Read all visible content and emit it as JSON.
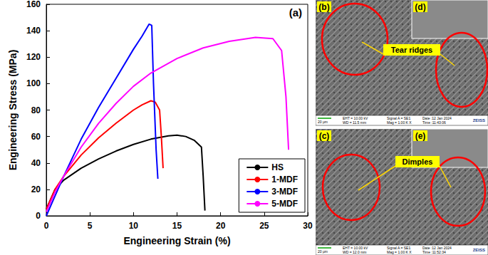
{
  "chart_data": {
    "type": "line",
    "panel_label": "(a)",
    "x_label": "Engineering Strain (%)",
    "y_label": "Engineering Stress (MPa)",
    "xlim": [
      0,
      30
    ],
    "xticks": [
      0,
      5,
      10,
      15,
      20,
      25,
      30
    ],
    "ylim": [
      0,
      160
    ],
    "yticks": [
      0,
      20,
      40,
      60,
      80,
      100,
      120,
      140,
      160
    ],
    "grid": false,
    "legend": "lower right",
    "series": [
      {
        "name": "HS",
        "color": "#000000",
        "x": [
          0,
          1,
          2,
          4,
          6,
          8,
          10,
          12,
          14,
          15,
          16,
          17,
          17.8,
          18,
          18.2
        ],
        "values": [
          5,
          20,
          27,
          36,
          43,
          49,
          54,
          58,
          60.5,
          61,
          60,
          57,
          52,
          30,
          4
        ]
      },
      {
        "name": "1-MDF",
        "color": "#ff0000",
        "x": [
          0,
          1,
          2,
          4,
          6,
          8,
          10,
          11,
          12,
          12.5,
          13,
          13.2,
          13.4
        ],
        "values": [
          5,
          20,
          30,
          46,
          59,
          70,
          80,
          84,
          87,
          86,
          80,
          60,
          36
        ]
      },
      {
        "name": "3-MDF",
        "color": "#0000ff",
        "x": [
          0,
          1,
          2,
          4,
          6,
          8,
          10,
          11,
          11.8,
          12.1,
          12.3,
          12.6,
          12.8
        ],
        "values": [
          0,
          15,
          30,
          58,
          82,
          104,
          126,
          136,
          145,
          144,
          100,
          50,
          28
        ]
      },
      {
        "name": "5-MDF",
        "color": "#ff00ff",
        "x": [
          0,
          1,
          2,
          4,
          6,
          8,
          10,
          12,
          15,
          18,
          21,
          24,
          26,
          27,
          27.5,
          27.8
        ],
        "values": [
          3,
          18,
          30,
          52,
          70,
          85,
          98,
          108,
          119,
          127,
          132,
          135,
          134,
          125,
          90,
          50
        ]
      }
    ]
  },
  "sem_panels": [
    {
      "label": "(b)",
      "inset_label": "(d)",
      "annotation": "Tear ridges",
      "scale_bar": "20 μm",
      "info": [
        "EHT = 10.00 kV",
        "WD = 11.5 mm",
        "Signal A = SE1",
        "Mag = 1.00 K X",
        "Date :12 Jan 2024",
        "Time :11:43:06"
      ],
      "brand": "ZEISS"
    },
    {
      "label": "(c)",
      "inset_label": "(e)",
      "annotation": "Dimples",
      "scale_bar": "20 μm",
      "info": [
        "EHT = 10.00 kV",
        "WD = 12.0 mm",
        "Signal A = SE1",
        "Mag = 1.00 K X",
        "Date :12 Jan 2024",
        "Time :11:52:34"
      ],
      "brand": "ZEISS"
    }
  ]
}
